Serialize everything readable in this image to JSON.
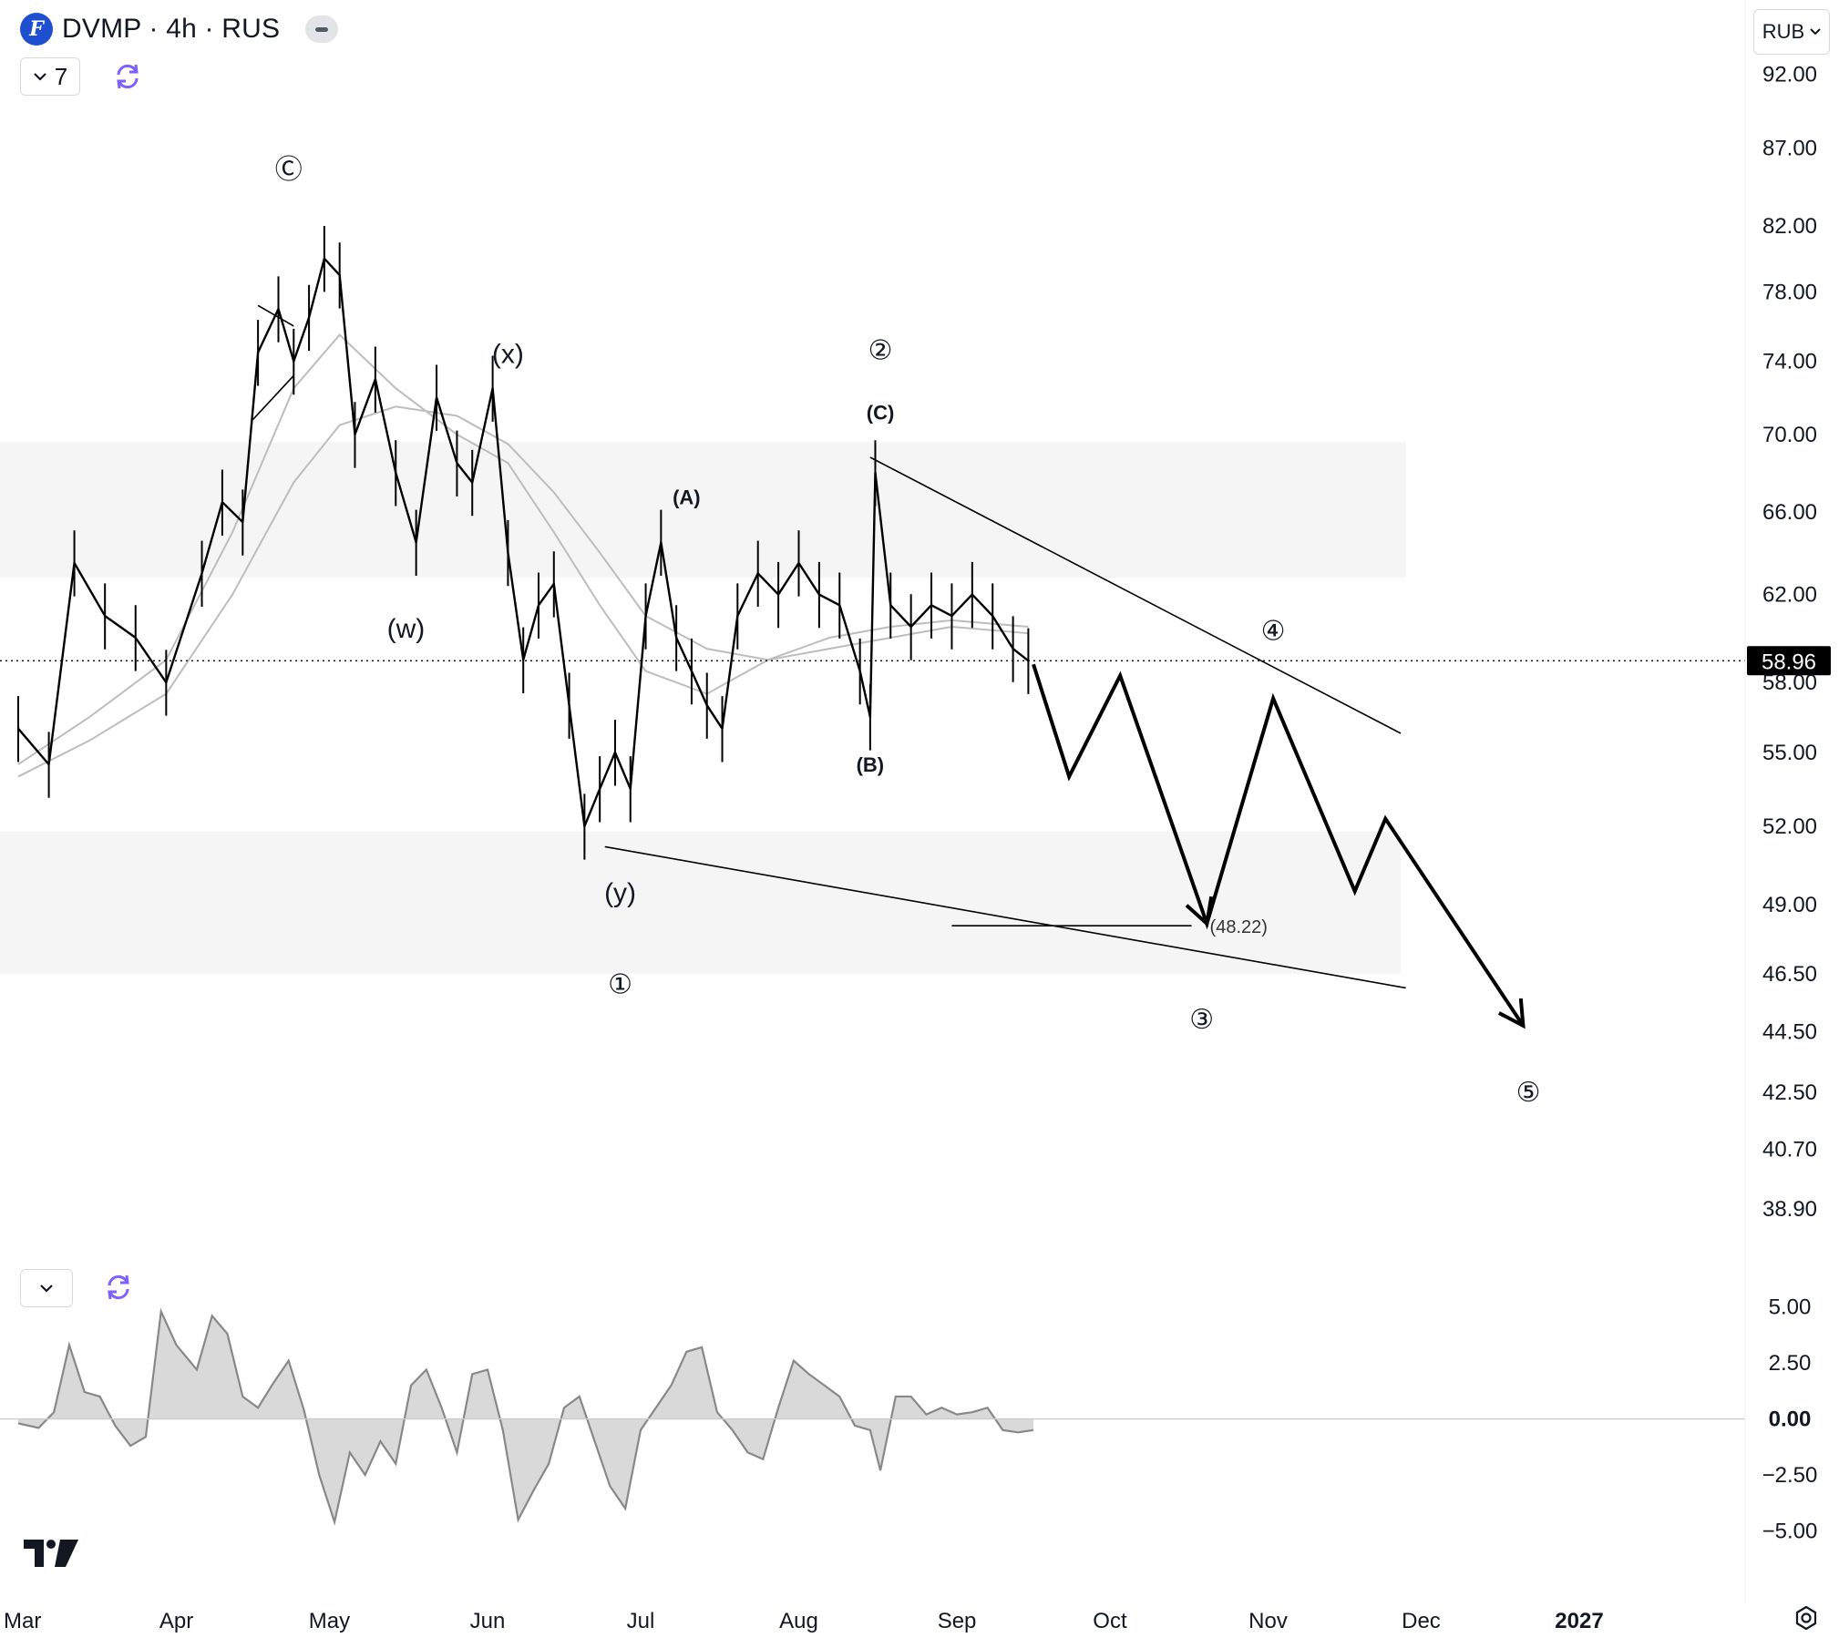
{
  "header": {
    "title": "DVMP · 4h · RUS",
    "indicator_count": "7",
    "currency": "RUB"
  },
  "colors": {
    "logo": "#1f4fd1",
    "refresh_icon": "#7b61ff",
    "price_tag_bg": "#000000",
    "zone_fill": "#f5f5f5",
    "ma_line": "#bdbdbd",
    "oscillator_fill": "#d9d9d9"
  },
  "chart_data": [
    {
      "type": "line",
      "subtype": "candlestick price with Elliott-wave projection",
      "title": "DVMP · 4h · RUS",
      "y_axis": {
        "scale": "log",
        "ylim": [
          37.5,
          96
        ],
        "ticks": [
          "92.00",
          "87.00",
          "82.00",
          "78.00",
          "74.00",
          "70.00",
          "66.00",
          "62.00",
          "58.00",
          "55.00",
          "52.00",
          "49.00",
          "46.50",
          "44.50",
          "42.50",
          "40.70",
          "38.90"
        ]
      },
      "x_axis": {
        "ticks": [
          "Mar",
          "Apr",
          "May",
          "Jun",
          "Jul",
          "Aug",
          "Sep",
          "Oct",
          "Nov",
          "Dec",
          "2027"
        ]
      },
      "current_price": "58.96",
      "price_series": {
        "name": "DVMP",
        "x": [
          "2026-03-01",
          "2026-03-07",
          "2026-03-12",
          "2026-03-18",
          "2026-03-24",
          "2026-03-30",
          "2026-04-06",
          "2026-04-10",
          "2026-04-14",
          "2026-04-17",
          "2026-04-21",
          "2026-04-24",
          "2026-04-27",
          "2026-04-30",
          "2026-05-03",
          "2026-05-06",
          "2026-05-10",
          "2026-05-14",
          "2026-05-18",
          "2026-05-22",
          "2026-05-26",
          "2026-05-29",
          "2026-06-02",
          "2026-06-05",
          "2026-06-08",
          "2026-06-11",
          "2026-06-14",
          "2026-06-17",
          "2026-06-20",
          "2026-06-23",
          "2026-06-26",
          "2026-06-29",
          "2026-07-02",
          "2026-07-05",
          "2026-07-08",
          "2026-07-11",
          "2026-07-14",
          "2026-07-17",
          "2026-07-20",
          "2026-07-24",
          "2026-07-28",
          "2026-08-01",
          "2026-08-05",
          "2026-08-09",
          "2026-08-13",
          "2026-08-15",
          "2026-08-16",
          "2026-08-19",
          "2026-08-23",
          "2026-08-27",
          "2026-08-31",
          "2026-09-04",
          "2026-09-08",
          "2026-09-12",
          "2026-09-15"
        ],
        "values": [
          56.0,
          54.5,
          63.5,
          61.0,
          60.0,
          58.0,
          63.0,
          66.5,
          65.5,
          74.5,
          77.0,
          74.0,
          76.5,
          80.0,
          79.0,
          70.0,
          73.0,
          68.0,
          64.5,
          72.0,
          68.5,
          67.5,
          72.5,
          64.0,
          59.0,
          61.5,
          62.5,
          57.0,
          52.0,
          53.5,
          55.0,
          53.5,
          61.0,
          64.5,
          60.0,
          58.5,
          57.0,
          56.0,
          61.0,
          63.0,
          62.0,
          63.5,
          62.0,
          61.5,
          58.5,
          56.5,
          68.0,
          61.5,
          60.5,
          61.5,
          61.0,
          62.0,
          61.0,
          59.5,
          58.96
        ]
      },
      "moving_averages": [
        {
          "x": [
            "2026-03-01",
            "2026-03-15",
            "2026-03-30",
            "2026-04-12",
            "2026-04-24",
            "2026-05-03",
            "2026-05-14",
            "2026-05-26",
            "2026-06-05",
            "2026-06-14",
            "2026-06-23",
            "2026-07-02",
            "2026-07-14",
            "2026-07-26",
            "2026-08-07",
            "2026-08-19",
            "2026-08-31",
            "2026-09-15"
          ],
          "values": [
            54.5,
            56.5,
            59.0,
            65.0,
            72.5,
            75.5,
            72.5,
            70.0,
            68.5,
            65.0,
            61.5,
            58.5,
            57.5,
            59.0,
            60.0,
            60.5,
            60.8,
            60.5
          ]
        },
        {
          "x": [
            "2026-03-01",
            "2026-03-15",
            "2026-03-30",
            "2026-04-12",
            "2026-04-24",
            "2026-05-03",
            "2026-05-14",
            "2026-05-26",
            "2026-06-05",
            "2026-06-14",
            "2026-06-23",
            "2026-07-02",
            "2026-07-14",
            "2026-07-26",
            "2026-08-07",
            "2026-08-19",
            "2026-08-31",
            "2026-09-15"
          ],
          "values": [
            54.0,
            55.5,
            57.5,
            62.0,
            67.5,
            70.5,
            71.5,
            71.0,
            69.5,
            67.0,
            64.0,
            61.0,
            59.5,
            59.0,
            59.5,
            60.0,
            60.5,
            60.2
          ]
        }
      ],
      "zones": [
        {
          "y_range": [
            62.8,
            69.6
          ],
          "x_range": [
            "2026-03-01",
            "2026-11-28"
          ]
        },
        {
          "y_range": [
            46.5,
            51.8
          ],
          "x_range": [
            "2026-03-01",
            "2026-11-27"
          ]
        }
      ],
      "trendlines": [
        {
          "x": [
            "2026-08-15",
            "2026-11-27"
          ],
          "y": [
            68.8,
            55.8
          ]
        },
        {
          "x": [
            "2026-06-24",
            "2026-11-28"
          ],
          "y": [
            51.2,
            46.0
          ]
        },
        {
          "x": [
            "2026-04-17",
            "2026-04-24"
          ],
          "y": [
            77.2,
            76.0
          ]
        },
        {
          "x": [
            "2026-04-16",
            "2026-04-24"
          ],
          "y": [
            70.8,
            73.2
          ]
        }
      ],
      "projection": {
        "x": [
          "2026-09-16",
          "2026-09-23",
          "2026-10-03",
          "2026-10-20",
          "2026-11-02",
          "2026-11-18",
          "2026-11-24",
          "2026-12-21"
        ],
        "values": [
          58.8,
          54.0,
          58.3,
          48.3,
          57.3,
          49.5,
          52.3,
          44.7
        ]
      },
      "target_line": {
        "x": [
          "2026-08-31",
          "2026-10-17"
        ],
        "y": 48.22,
        "label": "(48.22)"
      },
      "annotations": [
        {
          "text": "Ⓒ",
          "x": "2026-04-23",
          "y": 85.0,
          "size": "circled"
        },
        {
          "text": "(x)",
          "x": "2026-06-05",
          "y": 73.9,
          "size": "large"
        },
        {
          "text": "(w)",
          "x": "2026-05-16",
          "y": 60.0,
          "size": "large"
        },
        {
          "text": "(y)",
          "x": "2026-06-27",
          "y": 49.1,
          "size": "large"
        },
        {
          "text": "①",
          "x": "2026-06-27",
          "y": 45.8,
          "size": "circled"
        },
        {
          "text": "(A)",
          "x": "2026-07-10",
          "y": 66.4,
          "size": "small"
        },
        {
          "text": "②",
          "x": "2026-08-17",
          "y": 74.1,
          "size": "circled"
        },
        {
          "text": "(C)",
          "x": "2026-08-17",
          "y": 70.8,
          "size": "small"
        },
        {
          "text": "(B)",
          "x": "2026-08-15",
          "y": 54.2,
          "size": "small"
        },
        {
          "text": "③",
          "x": "2026-10-19",
          "y": 44.6,
          "size": "circled"
        },
        {
          "text": "④",
          "x": "2026-11-02",
          "y": 59.9,
          "size": "circled"
        },
        {
          "text": "⑤",
          "x": "2026-12-22",
          "y": 42.2,
          "size": "circled"
        }
      ]
    },
    {
      "type": "area",
      "subtype": "oscillator",
      "y_axis": {
        "ylim": [
          -6.2,
          6.0
        ],
        "ticks": [
          "5.00",
          "2.50",
          "0.00",
          "−2.50",
          "−5.00"
        ]
      },
      "series": {
        "x": [
          "2026-03-01",
          "2026-03-05",
          "2026-03-08",
          "2026-03-11",
          "2026-03-14",
          "2026-03-17",
          "2026-03-20",
          "2026-03-23",
          "2026-03-26",
          "2026-03-29",
          "2026-04-01",
          "2026-04-05",
          "2026-04-08",
          "2026-04-11",
          "2026-04-14",
          "2026-04-17",
          "2026-04-20",
          "2026-04-23",
          "2026-04-26",
          "2026-04-29",
          "2026-05-02",
          "2026-05-05",
          "2026-05-08",
          "2026-05-11",
          "2026-05-14",
          "2026-05-17",
          "2026-05-20",
          "2026-05-23",
          "2026-05-26",
          "2026-05-29",
          "2026-06-01",
          "2026-06-04",
          "2026-06-07",
          "2026-06-10",
          "2026-06-13",
          "2026-06-16",
          "2026-06-19",
          "2026-06-22",
          "2026-06-25",
          "2026-06-28",
          "2026-07-01",
          "2026-07-04",
          "2026-07-07",
          "2026-07-10",
          "2026-07-13",
          "2026-07-16",
          "2026-07-19",
          "2026-07-22",
          "2026-07-25",
          "2026-07-28",
          "2026-07-31",
          "2026-08-03",
          "2026-08-06",
          "2026-08-09",
          "2026-08-12",
          "2026-08-15",
          "2026-08-17",
          "2026-08-20",
          "2026-08-23",
          "2026-08-26",
          "2026-08-29",
          "2026-09-01",
          "2026-09-04",
          "2026-09-07",
          "2026-09-10",
          "2026-09-13",
          "2026-09-16"
        ],
        "values": [
          -0.2,
          -0.4,
          0.3,
          3.3,
          1.2,
          1.0,
          -0.3,
          -1.2,
          -0.8,
          4.8,
          3.3,
          2.2,
          4.6,
          3.8,
          1.0,
          0.5,
          1.6,
          2.6,
          0.4,
          -2.5,
          -4.6,
          -1.5,
          -2.5,
          -1.0,
          -2.0,
          1.5,
          2.2,
          0.5,
          -1.5,
          2.0,
          2.2,
          -0.5,
          -4.5,
          -3.2,
          -2.0,
          0.5,
          1.0,
          -1.0,
          -3.0,
          -4.0,
          -0.5,
          0.5,
          1.5,
          3.0,
          3.2,
          0.3,
          -0.5,
          -1.5,
          -1.8,
          0.5,
          2.6,
          2.0,
          1.5,
          1.0,
          -0.3,
          -0.5,
          -2.3,
          1.0,
          1.0,
          0.2,
          0.5,
          0.2,
          0.3,
          0.5,
          -0.5,
          -0.6,
          -0.5
        ]
      }
    }
  ]
}
